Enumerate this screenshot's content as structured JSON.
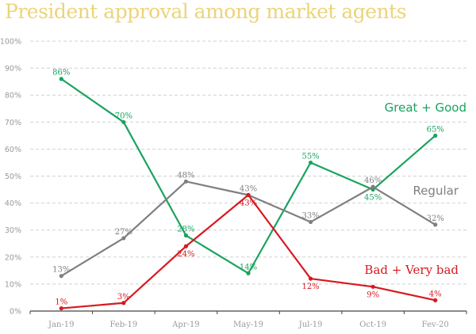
{
  "chart_data": {
    "type": "line",
    "title": "President approval among market agents",
    "xlabel": "",
    "ylabel": "",
    "categories": [
      "Jan-19",
      "Feb-19",
      "Apr-19",
      "May-19",
      "Jul-19",
      "Oct-19",
      "Fev-20"
    ],
    "ylim": [
      0,
      100
    ],
    "yticks": [
      "0%",
      "10%",
      "20%",
      "30%",
      "40%",
      "50%",
      "60%",
      "70%",
      "80%",
      "90%",
      "100%"
    ],
    "grid": true,
    "legend": "inline-labels",
    "series": [
      {
        "name": "Great + Good",
        "color": "#1aa35f",
        "values": [
          86,
          70,
          28,
          14,
          55,
          45,
          65
        ],
        "labels": [
          "86%",
          "70%",
          "28%",
          "14%",
          "55%",
          "45%",
          "65%"
        ],
        "label_pos": [
          "above",
          "above",
          "above",
          "above",
          "above",
          "below",
          "above"
        ]
      },
      {
        "name": "Regular",
        "color": "#7f7f7f",
        "values": [
          13,
          27,
          48,
          43,
          33,
          46,
          32
        ],
        "labels": [
          "13%",
          "27%",
          "48%",
          "43%",
          "33%",
          "46%",
          "32%"
        ],
        "label_pos": [
          "above",
          "above",
          "above",
          "above",
          "above",
          "above",
          "above"
        ]
      },
      {
        "name": "Bad + Very bad",
        "color": "#d7191f",
        "values": [
          1,
          3,
          24,
          43,
          12,
          9,
          4
        ],
        "labels": [
          "1%",
          "3%",
          "24%",
          "43%",
          "12%",
          "9%",
          "4%"
        ],
        "label_pos": [
          "above",
          "above",
          "below",
          "below",
          "below",
          "below",
          "above"
        ]
      }
    ]
  }
}
